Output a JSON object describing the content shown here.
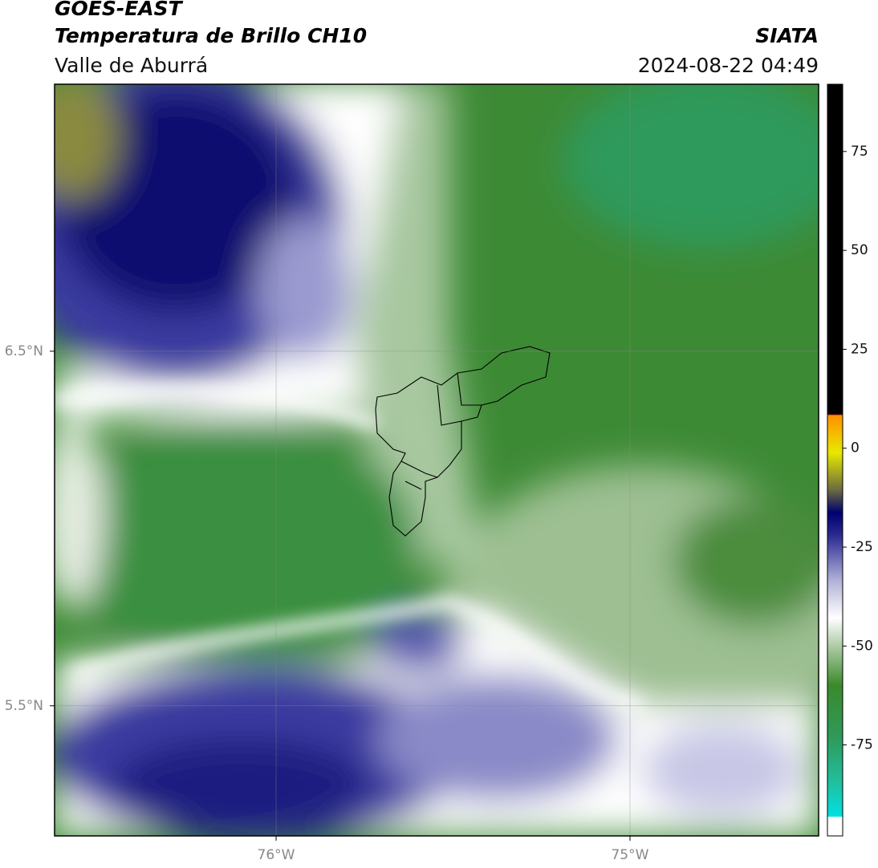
{
  "header": {
    "title": "GOES-EAST",
    "subtitle": "Temperatura de Brillo CH10",
    "region": "Valle de Aburrá",
    "source": "SIATA",
    "datetime": "2024-08-22 04:49"
  },
  "map": {
    "xlim": [
      -76.626,
      -74.467
    ],
    "ylim": [
      5.133,
      7.253
    ],
    "xticks": [
      {
        "value": -76,
        "label": "76°W"
      },
      {
        "value": -75,
        "label": "75°W"
      }
    ],
    "yticks": [
      {
        "value": 6.5,
        "label": "6.5°N"
      },
      {
        "value": 5.5,
        "label": "5.5°N"
      }
    ],
    "grid": true
  },
  "colorbar": {
    "lim": [
      -98,
      92
    ],
    "ticks": [
      -75,
      -50,
      -25,
      0,
      25,
      50,
      75
    ]
  }
}
